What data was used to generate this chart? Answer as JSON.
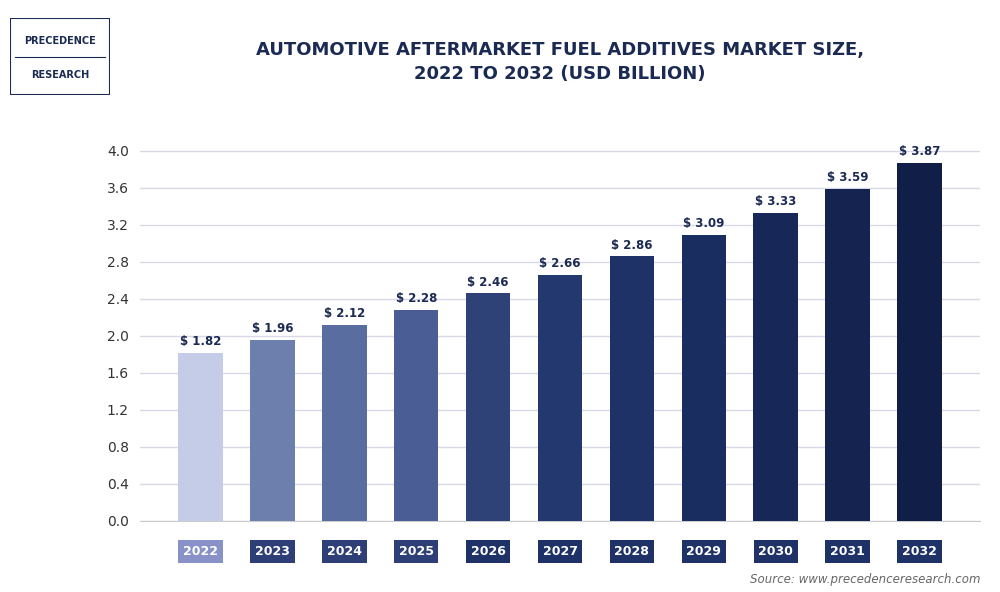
{
  "title": "AUTOMOTIVE AFTERMARKET FUEL ADDITIVES MARKET SIZE,\n2022 TO 2032 (USD BILLION)",
  "years": [
    "2022",
    "2023",
    "2024",
    "2025",
    "2026",
    "2027",
    "2028",
    "2029",
    "2030",
    "2031",
    "2032"
  ],
  "values": [
    1.82,
    1.96,
    2.12,
    2.28,
    2.46,
    2.66,
    2.86,
    3.09,
    3.33,
    3.59,
    3.87
  ],
  "bar_colors": [
    "#c5cce8",
    "#6d7fad",
    "#5a6da0",
    "#4a5d94",
    "#2e4278",
    "#243870",
    "#1e3268",
    "#1a2d60",
    "#172858",
    "#152350",
    "#111e48"
  ],
  "xtick_bg_colors": [
    "#8892c8",
    "#2e3f78",
    "#2e3f78",
    "#2e3f78",
    "#1e3268",
    "#1e3268",
    "#1e3268",
    "#1e3268",
    "#1e3268",
    "#1e3268",
    "#1e3268"
  ],
  "yticks": [
    0,
    0.4,
    0.8,
    1.2,
    1.6,
    2.0,
    2.4,
    2.8,
    3.2,
    3.6,
    4.0
  ],
  "ylim": [
    0,
    4.35
  ],
  "background_color": "#ffffff",
  "plot_bg_color": "#ffffff",
  "grid_color": "#d8d8e8",
  "title_color": "#1a2a52",
  "tick_label_color": "#333333",
  "value_label_color": "#1a2a52",
  "source_text": "Source: www.precedenceresearch.com",
  "logo_text_line1": "PRECEDENCE",
  "logo_text_line2": "RESEARCH",
  "bar_width": 0.62
}
